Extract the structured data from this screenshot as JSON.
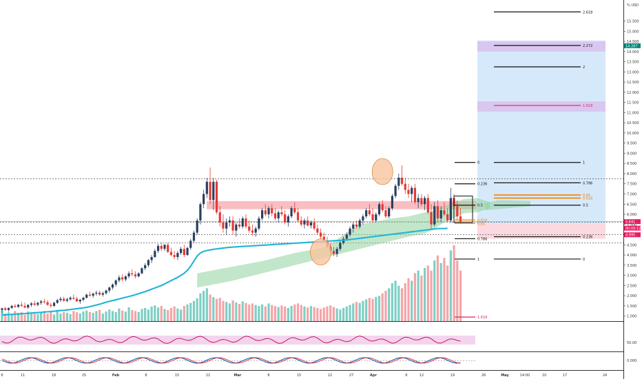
{
  "chart_data": {
    "type": "candlestick",
    "title": "",
    "currency_label": "% USD",
    "y_axis": {
      "min": 0.5,
      "max": 16.0,
      "ticks": [
        1,
        1.5,
        2,
        2.5,
        3,
        3.5,
        4,
        4.5,
        5,
        5.5,
        6,
        6.5,
        7,
        7.5,
        8,
        8.5,
        9,
        9.5,
        10,
        10.5,
        11,
        11.5,
        12,
        12.5,
        13,
        13.5,
        14,
        14.5,
        15,
        15.5
      ],
      "tick_labels": [
        "1.000",
        "1.500",
        "2.000",
        "2.500",
        "3.000",
        "3.500",
        "4.000",
        "4.500",
        "5.000",
        "5.500",
        "6.000",
        "6.500",
        "7.000",
        "7.500",
        "8.000",
        "8.500",
        "9.000",
        "9.500",
        "10.000",
        "10.500",
        "11.000",
        "11.500",
        "12.000",
        "12.500",
        "13.000",
        "13.500",
        "14.000",
        "14.500",
        "15.000",
        "15.500"
      ]
    },
    "price_badges": [
      {
        "value": 14.287,
        "label": "14.287",
        "color": "#00897b"
      },
      {
        "value": 5.641,
        "label": "5.641",
        "color": "#e91e63"
      },
      {
        "value": 5.32,
        "label": "0h:00:12",
        "color": "#e91e63"
      },
      {
        "value": 4.995,
        "label": "4.995",
        "color": "#e91e63"
      }
    ],
    "x_axis": {
      "labels": [
        "6",
        "11",
        "18",
        "25",
        "Feb",
        "8",
        "15",
        "22",
        "Mar",
        "8",
        "15",
        "22",
        "27",
        "Apr",
        "6",
        "12",
        "19",
        "26",
        "May",
        "14:00",
        "10",
        "17",
        "24"
      ],
      "bold": [
        "Feb",
        "Mar",
        "Apr",
        "May"
      ]
    },
    "candles": [
      [
        1.3,
        1.4,
        1.15,
        1.38
      ],
      [
        1.38,
        1.45,
        1.25,
        1.3
      ],
      [
        1.3,
        1.42,
        1.22,
        1.4
      ],
      [
        1.4,
        1.55,
        1.35,
        1.5
      ],
      [
        1.5,
        1.6,
        1.4,
        1.45
      ],
      [
        1.45,
        1.6,
        1.4,
        1.55
      ],
      [
        1.55,
        1.7,
        1.45,
        1.5
      ],
      [
        1.5,
        1.65,
        1.38,
        1.42
      ],
      [
        1.42,
        1.58,
        1.35,
        1.55
      ],
      [
        1.55,
        1.68,
        1.45,
        1.62
      ],
      [
        1.62,
        1.75,
        1.5,
        1.55
      ],
      [
        1.55,
        1.7,
        1.48,
        1.65
      ],
      [
        1.65,
        1.8,
        1.55,
        1.72
      ],
      [
        1.72,
        1.85,
        1.6,
        1.68
      ],
      [
        1.68,
        1.78,
        1.5,
        1.55
      ],
      [
        1.55,
        1.65,
        1.4,
        1.5
      ],
      [
        1.5,
        1.7,
        1.45,
        1.65
      ],
      [
        1.65,
        1.85,
        1.6,
        1.78
      ],
      [
        1.78,
        1.95,
        1.7,
        1.85
      ],
      [
        1.85,
        1.95,
        1.7,
        1.75
      ],
      [
        1.75,
        1.9,
        1.68,
        1.82
      ],
      [
        1.82,
        1.98,
        1.75,
        1.9
      ],
      [
        1.9,
        2.05,
        1.8,
        1.85
      ],
      [
        1.85,
        1.95,
        1.7,
        1.72
      ],
      [
        1.72,
        1.85,
        1.6,
        1.8
      ],
      [
        1.8,
        1.95,
        1.72,
        1.9
      ],
      [
        1.9,
        2.1,
        1.85,
        2.05
      ],
      [
        2.05,
        2.2,
        1.95,
        2.0
      ],
      [
        2.0,
        2.15,
        1.9,
        2.1
      ],
      [
        2.1,
        2.25,
        2.0,
        2.15
      ],
      [
        2.15,
        2.25,
        2.0,
        2.05
      ],
      [
        2.05,
        2.2,
        1.95,
        2.12
      ],
      [
        2.12,
        2.3,
        2.05,
        2.25
      ],
      [
        2.25,
        2.45,
        2.15,
        2.4
      ],
      [
        2.4,
        2.6,
        2.3,
        2.55
      ],
      [
        2.55,
        2.8,
        2.45,
        2.75
      ],
      [
        2.75,
        3.0,
        2.65,
        2.9
      ],
      [
        2.9,
        3.05,
        2.7,
        2.8
      ],
      [
        2.8,
        3.0,
        2.7,
        2.95
      ],
      [
        2.95,
        3.2,
        2.85,
        3.1
      ],
      [
        3.1,
        3.3,
        2.95,
        3.05
      ],
      [
        3.05,
        3.2,
        2.85,
        2.95
      ],
      [
        2.95,
        3.15,
        2.9,
        3.1
      ],
      [
        3.1,
        3.4,
        3.05,
        3.35
      ],
      [
        3.35,
        3.6,
        3.25,
        3.5
      ],
      [
        3.5,
        3.8,
        3.4,
        3.75
      ],
      [
        3.75,
        4.0,
        3.6,
        3.9
      ],
      [
        3.9,
        4.3,
        3.85,
        4.2
      ],
      [
        4.2,
        4.55,
        4.1,
        4.45
      ],
      [
        4.45,
        4.6,
        4.2,
        4.3
      ],
      [
        4.3,
        4.55,
        4.2,
        4.5
      ],
      [
        4.5,
        4.6,
        4.1,
        4.15
      ],
      [
        4.15,
        4.35,
        3.95,
        4.0
      ],
      [
        4.0,
        4.2,
        3.8,
        3.9
      ],
      [
        3.9,
        4.2,
        3.75,
        4.1
      ],
      [
        4.1,
        4.4,
        4.0,
        4.3
      ],
      [
        4.3,
        4.5,
        3.9,
        4.0
      ],
      [
        4.0,
        4.4,
        3.95,
        4.35
      ],
      [
        4.35,
        4.8,
        4.25,
        4.7
      ],
      [
        4.7,
        5.2,
        4.6,
        5.1
      ],
      [
        5.1,
        5.8,
        5.0,
        5.7
      ],
      [
        5.7,
        6.6,
        5.5,
        6.5
      ],
      [
        6.5,
        7.2,
        6.3,
        7.0
      ],
      [
        7.0,
        7.8,
        6.8,
        7.6
      ],
      [
        7.6,
        8.3,
        6.5,
        6.7
      ],
      [
        6.7,
        7.8,
        6.2,
        7.6
      ],
      [
        7.6,
        7.7,
        6.0,
        6.1
      ],
      [
        6.1,
        6.4,
        5.4,
        5.6
      ],
      [
        5.6,
        6.0,
        5.1,
        5.3
      ],
      [
        5.3,
        5.8,
        5.0,
        5.6
      ],
      [
        5.6,
        5.9,
        5.4,
        5.7
      ],
      [
        5.7,
        5.9,
        5.0,
        5.2
      ],
      [
        5.2,
        5.6,
        4.9,
        5.5
      ],
      [
        5.5,
        5.8,
        5.3,
        5.4
      ],
      [
        5.4,
        5.9,
        5.3,
        5.8
      ],
      [
        5.8,
        6.0,
        5.3,
        5.4
      ],
      [
        5.4,
        5.7,
        5.1,
        5.2
      ],
      [
        5.2,
        5.5,
        4.95,
        5.1
      ],
      [
        5.1,
        5.4,
        4.9,
        5.3
      ],
      [
        5.3,
        5.9,
        5.2,
        5.8
      ],
      [
        5.8,
        6.3,
        5.7,
        6.2
      ],
      [
        6.2,
        6.5,
        5.9,
        6.0
      ],
      [
        6.0,
        6.4,
        5.8,
        6.3
      ],
      [
        6.3,
        6.5,
        5.9,
        6.05
      ],
      [
        6.05,
        6.3,
        5.7,
        5.8
      ],
      [
        5.8,
        6.2,
        5.6,
        6.1
      ],
      [
        6.1,
        6.4,
        5.9,
        6.0
      ],
      [
        6.0,
        6.2,
        5.5,
        5.6
      ],
      [
        5.6,
        6.0,
        5.4,
        5.9
      ],
      [
        5.9,
        6.4,
        5.8,
        6.3
      ],
      [
        6.3,
        6.6,
        6.0,
        6.1
      ],
      [
        6.1,
        6.3,
        5.6,
        5.7
      ],
      [
        5.7,
        5.9,
        5.4,
        5.5
      ],
      [
        5.5,
        5.8,
        5.3,
        5.7
      ],
      [
        5.7,
        5.9,
        5.4,
        5.45
      ],
      [
        5.45,
        5.7,
        5.3,
        5.6
      ],
      [
        5.6,
        5.8,
        5.2,
        5.3
      ],
      [
        5.3,
        5.5,
        5.0,
        5.1
      ],
      [
        5.1,
        5.3,
        4.8,
        4.9
      ],
      [
        4.9,
        5.1,
        4.6,
        4.7
      ],
      [
        4.7,
        4.9,
        4.3,
        4.4
      ],
      [
        4.4,
        4.6,
        4.1,
        4.2
      ],
      [
        4.2,
        4.4,
        3.95,
        4.05
      ],
      [
        4.05,
        4.4,
        3.9,
        4.3
      ],
      [
        4.3,
        4.7,
        4.2,
        4.6
      ],
      [
        4.6,
        4.9,
        4.5,
        4.8
      ],
      [
        4.8,
        5.1,
        4.7,
        5.0
      ],
      [
        5.0,
        5.4,
        4.9,
        5.3
      ],
      [
        5.3,
        5.6,
        5.1,
        5.5
      ],
      [
        5.5,
        5.7,
        5.3,
        5.4
      ],
      [
        5.4,
        5.8,
        5.3,
        5.7
      ],
      [
        5.7,
        6.0,
        5.5,
        5.9
      ],
      [
        5.9,
        6.3,
        5.8,
        6.2
      ],
      [
        6.2,
        6.5,
        5.9,
        6.0
      ],
      [
        6.0,
        6.3,
        5.6,
        5.7
      ],
      [
        5.7,
        6.1,
        5.6,
        6.0
      ],
      [
        6.0,
        6.6,
        5.9,
        6.5
      ],
      [
        6.5,
        6.7,
        6.1,
        6.2
      ],
      [
        6.2,
        6.4,
        5.8,
        5.9
      ],
      [
        5.9,
        6.4,
        5.8,
        6.3
      ],
      [
        6.3,
        7.0,
        6.2,
        6.9
      ],
      [
        6.9,
        7.5,
        6.8,
        7.4
      ],
      [
        7.4,
        8.0,
        7.2,
        7.8
      ],
      [
        7.8,
        8.4,
        7.4,
        7.5
      ],
      [
        7.5,
        7.8,
        7.0,
        7.2
      ],
      [
        7.2,
        7.5,
        6.8,
        7.0
      ],
      [
        7.0,
        7.4,
        6.6,
        7.3
      ],
      [
        7.3,
        7.5,
        6.5,
        6.6
      ],
      [
        6.6,
        7.0,
        6.3,
        6.8
      ],
      [
        6.8,
        7.0,
        6.4,
        6.5
      ],
      [
        6.5,
        6.9,
        6.2,
        6.8
      ],
      [
        6.8,
        7.0,
        6.0,
        6.1
      ],
      [
        6.1,
        6.5,
        5.3,
        5.5
      ],
      [
        5.5,
        6.6,
        5.4,
        6.4
      ],
      [
        6.4,
        6.7,
        5.6,
        5.8
      ],
      [
        5.8,
        6.4,
        5.6,
        6.2
      ],
      [
        6.2,
        6.6,
        5.9,
        6.0
      ],
      [
        6.0,
        6.3,
        5.6,
        5.7
      ],
      [
        5.7,
        7.3,
        5.6,
        6.8
      ],
      [
        6.8,
        7.0,
        6.2,
        6.4
      ],
      [
        6.4,
        6.7,
        5.7,
        5.9
      ],
      [
        5.9,
        6.3,
        5.55,
        5.64
      ]
    ],
    "volume": [
      42,
      30,
      35,
      28,
      40,
      33,
      36,
      25,
      38,
      30,
      32,
      28,
      35,
      40,
      30,
      38,
      26,
      45,
      30,
      36,
      33,
      28,
      40,
      35,
      30,
      38,
      42,
      36,
      33,
      40,
      44,
      30,
      38,
      46,
      40,
      36,
      50,
      42,
      38,
      55,
      44,
      40,
      36,
      48,
      52,
      46,
      58,
      62,
      54,
      60,
      48,
      44,
      52,
      58,
      50,
      46,
      60,
      66,
      72,
      80,
      90,
      110,
      120,
      130,
      105,
      95,
      88,
      92,
      80,
      76,
      70,
      82,
      74,
      68,
      78,
      72,
      66,
      70,
      64,
      60,
      66,
      58,
      70,
      64,
      60,
      56,
      62,
      58,
      52,
      60,
      66,
      70,
      64,
      58,
      54,
      60,
      56,
      52,
      48,
      54,
      58,
      62,
      56,
      50,
      46,
      52,
      58,
      64,
      70,
      76,
      72,
      80,
      86,
      92,
      88,
      96,
      100,
      110,
      120,
      130,
      150,
      160,
      140,
      130,
      150,
      170,
      160,
      190,
      200,
      180,
      210,
      220,
      200,
      240,
      260,
      230,
      250,
      220,
      280,
      300,
      240,
      200
    ],
    "kijun": [
      1.05,
      1.06,
      1.07,
      1.08,
      1.09,
      1.1,
      1.11,
      1.12,
      1.13,
      1.15,
      1.16,
      1.17,
      1.18,
      1.2,
      1.21,
      1.22,
      1.24,
      1.25,
      1.27,
      1.28,
      1.3,
      1.32,
      1.34,
      1.36,
      1.38,
      1.4,
      1.43,
      1.46,
      1.5,
      1.54,
      1.58,
      1.63,
      1.68,
      1.72,
      1.76,
      1.8,
      1.84,
      1.88,
      1.92,
      1.96,
      2.0,
      2.05,
      2.1,
      2.15,
      2.2,
      2.26,
      2.32,
      2.38,
      2.44,
      2.5,
      2.58,
      2.66,
      2.74,
      2.82,
      2.9,
      3.0,
      3.1,
      3.25,
      3.45,
      3.7,
      3.95,
      4.1,
      4.18,
      4.22,
      4.25,
      4.28,
      4.3,
      4.32,
      4.34,
      4.36,
      4.38,
      4.39,
      4.4,
      4.41,
      4.42,
      4.43,
      4.44,
      4.45,
      4.46,
      4.47,
      4.48,
      4.49,
      4.5,
      4.51,
      4.52,
      4.53,
      4.54,
      4.55,
      4.56,
      4.57,
      4.58,
      4.59,
      4.6,
      4.61,
      4.62,
      4.63,
      4.64,
      4.65,
      4.66,
      4.67,
      4.68,
      4.69,
      4.7,
      4.71,
      4.72,
      4.73,
      4.74,
      4.76,
      4.78,
      4.8,
      4.82,
      4.84,
      4.86,
      4.88,
      4.9,
      4.92,
      4.94,
      4.96,
      4.98,
      5.0,
      5.02,
      5.04,
      5.06,
      5.08,
      5.1,
      5.12,
      5.14,
      5.16,
      5.18,
      5.2,
      5.22,
      5.24,
      5.26,
      5.28,
      5.3,
      5.3,
      5.3,
      5.31
    ],
    "cloud": [
      [
        60,
        3.1,
        2.4
      ],
      [
        70,
        3.4,
        2.7
      ],
      [
        80,
        3.7,
        3.1
      ],
      [
        90,
        4.1,
        3.5
      ],
      [
        100,
        4.4,
        3.9
      ],
      [
        105,
        5.0,
        4.1
      ],
      [
        110,
        5.5,
        4.3
      ],
      [
        115,
        5.65,
        4.5
      ],
      [
        120,
        5.8,
        4.7
      ],
      [
        125,
        5.9,
        4.9
      ],
      [
        130,
        6.1,
        5.05
      ],
      [
        133,
        6.2,
        5.3
      ],
      [
        136,
        6.4,
        5.6
      ],
      [
        142,
        6.75,
        6.05
      ],
      [
        146,
        6.8,
        6.1
      ],
      [
        150,
        6.6,
        6.3
      ]
    ],
    "resistance_zone": {
      "top": 6.65,
      "bottom": 6.25
    },
    "support_zone": {
      "top": 5.55,
      "bottom": 4.8
    },
    "dashed_levels": [
      7.75,
      5.61,
      5.0,
      4.6
    ],
    "fib_left": {
      "levels": [
        {
          "value": 8.55,
          "label": "0"
        },
        {
          "value": 7.5,
          "label": "0.236"
        },
        {
          "value": 6.45,
          "label": "0.5"
        },
        {
          "value": 5.72,
          "label": "0.618"
        },
        {
          "value": 5.55,
          "label": "0.65"
        },
        {
          "value": 4.8,
          "label": "0.786"
        },
        {
          "value": 3.8,
          "label": "1"
        },
        {
          "value": 0.95,
          "label": "1.618"
        }
      ]
    },
    "fib_right": {
      "levels": [
        {
          "value": 15.95,
          "label": "2.618"
        },
        {
          "value": 14.3,
          "label": "2.272"
        },
        {
          "value": 13.25,
          "label": "2"
        },
        {
          "value": 11.35,
          "label": "1.618"
        },
        {
          "value": 8.55,
          "label": "1"
        },
        {
          "value": 7.55,
          "label": "0.786"
        },
        {
          "value": 6.95,
          "label": "0.65"
        },
        {
          "value": 6.8,
          "label": "0.618"
        },
        {
          "value": 6.45,
          "label": "0.5"
        },
        {
          "value": 4.9,
          "label": "0.236"
        },
        {
          "value": 3.8,
          "label": "0"
        }
      ]
    },
    "ellipses": [
      {
        "center_index": 117,
        "value": 8.1
      },
      {
        "center_index": 98,
        "value": 4.15
      }
    ],
    "rsi_label": "50.00",
    "osc_label": "0.000"
  }
}
